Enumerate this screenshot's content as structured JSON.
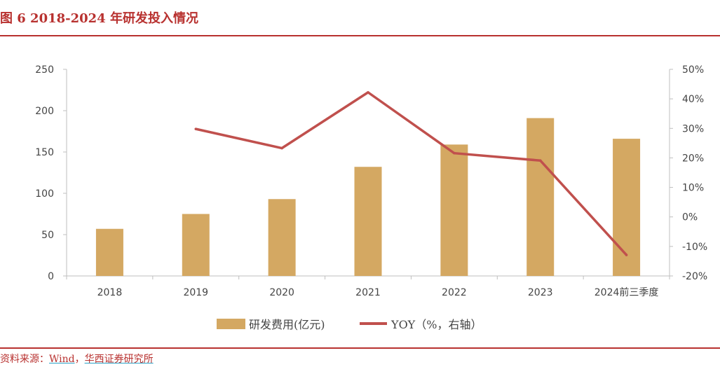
{
  "header": {
    "title": "图 6   2018-2024 年研发投入情况"
  },
  "footer": {
    "source_prefix": "资料来源：",
    "source_wind": "Wind",
    "source_sep": "，",
    "source_huaxi": "华西证券研究所"
  },
  "chart_data": {
    "type": "bar",
    "categories": [
      "2018",
      "2019",
      "2020",
      "2021",
      "2022",
      "2023",
      "2024前三季度"
    ],
    "series": [
      {
        "name": "研发费用(亿元)",
        "type": "bar",
        "axis": "left",
        "color": "#d4a862",
        "values": [
          57,
          75,
          93,
          132,
          159,
          191,
          166
        ]
      },
      {
        "name": "YOY（%，右轴）",
        "type": "line",
        "axis": "right",
        "color": "#c0504d",
        "values": [
          null,
          29.8,
          23.3,
          42.2,
          21.6,
          19.1,
          -12.9
        ]
      }
    ],
    "y_left": {
      "min": 0,
      "max": 250,
      "ticks": [
        "0",
        "50",
        "100",
        "150",
        "200",
        "250"
      ]
    },
    "y_right": {
      "min": -20,
      "max": 50,
      "ticks": [
        "-20%",
        "-10%",
        "0%",
        "10%",
        "20%",
        "30%",
        "40%",
        "50%"
      ]
    },
    "legend": {
      "position": "bottom"
    },
    "grid": false
  }
}
